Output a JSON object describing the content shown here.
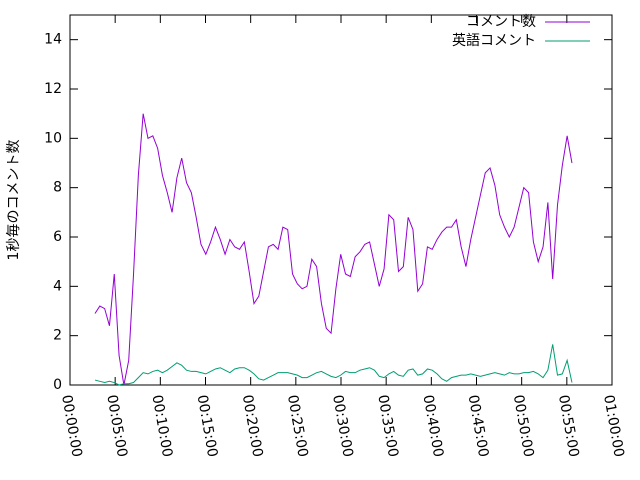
{
  "chart_data": {
    "type": "line",
    "ylabel": "1秒毎のコメント数",
    "xlim": [
      0,
      3600
    ],
    "ylim": [
      0,
      15
    ],
    "xticks": [
      {
        "value": 0,
        "label": "00:00:00"
      },
      {
        "value": 300,
        "label": "00:05:00"
      },
      {
        "value": 600,
        "label": "00:10:00"
      },
      {
        "value": 900,
        "label": "00:15:00"
      },
      {
        "value": 1200,
        "label": "00:20:00"
      },
      {
        "value": 1500,
        "label": "00:25:00"
      },
      {
        "value": 1800,
        "label": "00:30:00"
      },
      {
        "value": 2100,
        "label": "00:35:00"
      },
      {
        "value": 2400,
        "label": "00:40:00"
      },
      {
        "value": 2700,
        "label": "00:45:00"
      },
      {
        "value": 3000,
        "label": "00:50:00"
      },
      {
        "value": 3300,
        "label": "00:55:00"
      },
      {
        "value": 3600,
        "label": "01:00:00"
      }
    ],
    "yticks": [
      0,
      2,
      4,
      6,
      8,
      10,
      12,
      14
    ],
    "legend": "upper right",
    "x": [
      166,
      198,
      230,
      262,
      294,
      326,
      358,
      390,
      422,
      454,
      486,
      518,
      550,
      582,
      614,
      646,
      678,
      710,
      742,
      774,
      806,
      838,
      870,
      902,
      934,
      966,
      998,
      1030,
      1062,
      1094,
      1126,
      1158,
      1190,
      1222,
      1254,
      1286,
      1318,
      1350,
      1382,
      1414,
      1446,
      1478,
      1510,
      1542,
      1574,
      1606,
      1638,
      1670,
      1702,
      1734,
      1766,
      1798,
      1830,
      1862,
      1894,
      1926,
      1958,
      1990,
      2022,
      2054,
      2086,
      2118,
      2150,
      2182,
      2214,
      2246,
      2278,
      2310,
      2342,
      2374,
      2406,
      2438,
      2470,
      2502,
      2534,
      2566,
      2598,
      2630,
      2662,
      2694,
      2726,
      2758,
      2790,
      2822,
      2854,
      2886,
      2918,
      2950,
      2982,
      3014,
      3046,
      3078,
      3110,
      3142,
      3174,
      3206,
      3238,
      3270,
      3302,
      3334
    ],
    "series": [
      {
        "name": "コメント数",
        "color": "#9400d3",
        "values": [
          2.9,
          3.2,
          3.1,
          2.4,
          4.5,
          1.2,
          0,
          1.0,
          4.5,
          8.5,
          11.0,
          10.0,
          10.1,
          9.6,
          8.5,
          7.8,
          7.0,
          8.4,
          9.2,
          8.2,
          7.8,
          6.8,
          5.7,
          5.3,
          5.8,
          6.4,
          5.9,
          5.3,
          5.9,
          5.6,
          5.5,
          5.8,
          4.6,
          3.3,
          3.6,
          4.6,
          5.6,
          5.7,
          5.5,
          6.4,
          6.3,
          4.5,
          4.1,
          3.9,
          4.0,
          5.1,
          4.8,
          3.3,
          2.3,
          2.1,
          3.9,
          5.3,
          4.5,
          4.4,
          5.2,
          5.4,
          5.7,
          5.8,
          4.9,
          4.0,
          4.7,
          6.9,
          6.7,
          4.6,
          4.8,
          6.8,
          6.3,
          3.8,
          4.1,
          5.6,
          5.5,
          5.9,
          6.2,
          6.4,
          6.4,
          6.7,
          5.6,
          4.8,
          5.9,
          6.8,
          7.7,
          8.6,
          8.8,
          8.1,
          6.9,
          6.4,
          6.0,
          6.4,
          7.2,
          8.0,
          7.8,
          5.8,
          5.0,
          5.6,
          7.4,
          4.3,
          7.3,
          8.9,
          10.1,
          9.0
        ]
      },
      {
        "name": "英語コメント",
        "color": "#009e73",
        "values": [
          0.2,
          0.15,
          0.1,
          0.15,
          0.1,
          0,
          0.05,
          0.05,
          0.1,
          0.3,
          0.5,
          0.45,
          0.55,
          0.6,
          0.5,
          0.6,
          0.75,
          0.9,
          0.8,
          0.6,
          0.55,
          0.55,
          0.5,
          0.45,
          0.55,
          0.65,
          0.7,
          0.6,
          0.5,
          0.65,
          0.7,
          0.7,
          0.6,
          0.45,
          0.25,
          0.2,
          0.3,
          0.4,
          0.5,
          0.5,
          0.5,
          0.45,
          0.4,
          0.3,
          0.3,
          0.4,
          0.5,
          0.55,
          0.45,
          0.35,
          0.3,
          0.4,
          0.55,
          0.5,
          0.5,
          0.6,
          0.65,
          0.7,
          0.6,
          0.35,
          0.3,
          0.45,
          0.55,
          0.4,
          0.35,
          0.6,
          0.65,
          0.4,
          0.45,
          0.65,
          0.6,
          0.45,
          0.25,
          0.15,
          0.3,
          0.35,
          0.4,
          0.4,
          0.45,
          0.4,
          0.35,
          0.4,
          0.45,
          0.5,
          0.45,
          0.4,
          0.5,
          0.45,
          0.45,
          0.5,
          0.5,
          0.55,
          0.45,
          0.3,
          0.6,
          1.65,
          0.4,
          0.45,
          1.0,
          0.1
        ]
      }
    ]
  }
}
